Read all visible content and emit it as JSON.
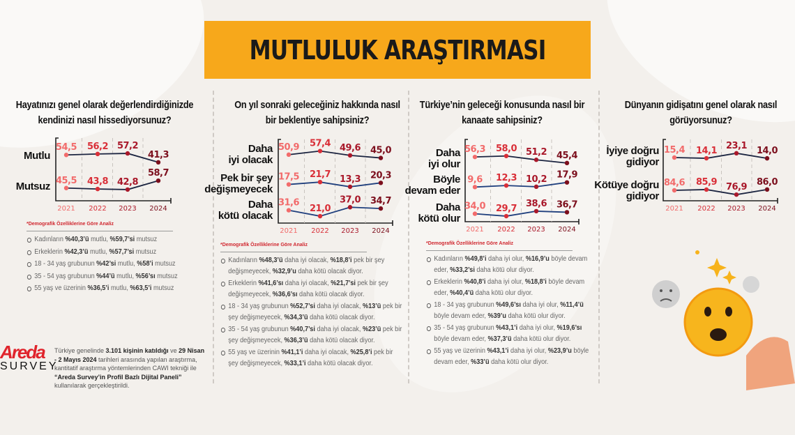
{
  "title": "MUTLULUK ARAŞTIRMASI",
  "colors": {
    "title_bg": "#f7a81b",
    "y2021": "#f26b6b",
    "y2022": "#d92f38",
    "y2023": "#a9182a",
    "y2024": "#7c0f1d",
    "line_dark": "#1b2440",
    "line_blue": "#1f3f7d"
  },
  "demographic_heading": "*Demografik Özelliklerine Göre Analiz",
  "chart_data": [
    {
      "type": "line",
      "title": "Hayatınızı genel olarak değerlendirdiğinizde kendinizi nasıl hissediyorsunuz?",
      "categories": [
        "2021",
        "2022",
        "2023",
        "2024"
      ],
      "series": [
        {
          "name": "Mutlu",
          "values": [
            54.5,
            56.2,
            57.2,
            41.3
          ]
        },
        {
          "name": "Mutsuz",
          "values": [
            45.5,
            43.8,
            42.8,
            58.7
          ]
        }
      ]
    },
    {
      "type": "line",
      "title": "On yıl sonraki geleceğiniz hakkında nasıl bir beklentiye sahipsiniz?",
      "categories": [
        "2021",
        "2022",
        "2023",
        "2024"
      ],
      "series": [
        {
          "name": "Daha iyi olacak",
          "values": [
            50.9,
            57.4,
            49.6,
            45.0
          ]
        },
        {
          "name": "Pek bir şey değişmeyecek",
          "values": [
            17.5,
            21.7,
            13.3,
            20.3
          ]
        },
        {
          "name": "Daha kötü olacak",
          "values": [
            31.6,
            21.0,
            37.0,
            34.7
          ]
        }
      ]
    },
    {
      "type": "line",
      "title": "Türkiye’nin geleceği konusunda nasıl bir kanaate sahipsiniz?",
      "categories": [
        "2021",
        "2022",
        "2023",
        "2024"
      ],
      "series": [
        {
          "name": "Daha iyi olur",
          "values": [
            56.3,
            58.0,
            51.2,
            45.4
          ]
        },
        {
          "name": "Böyle devam eder",
          "values": [
            9.6,
            12.3,
            10.2,
            17.9
          ]
        },
        {
          "name": "Daha kötü olur",
          "values": [
            34.0,
            29.7,
            38.6,
            36.7
          ]
        }
      ]
    },
    {
      "type": "line",
      "title": "Dünyanın gidişatını genel olarak nasıl görüyorsunuz?",
      "categories": [
        "2021",
        "2022",
        "2023",
        "2024"
      ],
      "series": [
        {
          "name": "İyiye doğru gidiyor",
          "values": [
            15.4,
            14.1,
            23.1,
            14.0
          ]
        },
        {
          "name": "Kötüye doğru gidiyor",
          "values": [
            84.6,
            85.9,
            76.9,
            86.0
          ]
        }
      ]
    }
  ],
  "demographics": [
    [
      [
        [
          "Kadınların ",
          0
        ],
        [
          "%40,3’ü",
          1
        ],
        [
          " mutlu, ",
          0
        ],
        [
          "%59,7’si",
          1
        ],
        [
          " mutsuz",
          0
        ]
      ],
      [
        [
          "Erkeklerin ",
          0
        ],
        [
          "%42,3’ü",
          1
        ],
        [
          " mutlu, ",
          0
        ],
        [
          "%57,7’si",
          1
        ],
        [
          " mutsuz",
          0
        ]
      ],
      [
        [
          "18 - 34 yaş grubunun ",
          0
        ],
        [
          "%42’si",
          1
        ],
        [
          " mutlu, ",
          0
        ],
        [
          "%58’i",
          1
        ],
        [
          " mutsuz",
          0
        ]
      ],
      [
        [
          "35 - 54 yaş grubunun ",
          0
        ],
        [
          "%44’ü",
          1
        ],
        [
          " mutlu, ",
          0
        ],
        [
          "%56’sı",
          1
        ],
        [
          " mutsuz",
          0
        ]
      ],
      [
        [
          "55 yaş ve üzerinin ",
          0
        ],
        [
          "%36,5’i",
          1
        ],
        [
          " mutlu, ",
          0
        ],
        [
          "%63,5’i",
          1
        ],
        [
          " mutsuz",
          0
        ]
      ]
    ],
    [
      [
        [
          "Kadınların ",
          0
        ],
        [
          "%48,3’ü",
          1
        ],
        [
          " daha iyi olacak, ",
          0
        ],
        [
          "%18,8’i",
          1
        ],
        [
          " pek bir şey değişmeyecek, ",
          0
        ],
        [
          "%32,9’u",
          1
        ],
        [
          " daha kötü olacak diyor.",
          0
        ]
      ],
      [
        [
          "Erkeklerin ",
          0
        ],
        [
          "%41,6’sı",
          1
        ],
        [
          " daha iyi olacak, ",
          0
        ],
        [
          "%21,7’si",
          1
        ],
        [
          " pek bir şey değişmeyecek, ",
          0
        ],
        [
          "%36,6’sı",
          1
        ],
        [
          "  daha kötü olacak diyor.",
          0
        ]
      ],
      [
        [
          "18 - 34 yaş grubunun ",
          0
        ],
        [
          "%52,7’si",
          1
        ],
        [
          " daha iyi olacak, ",
          0
        ],
        [
          "%13’ü",
          1
        ],
        [
          " pek bir şey değişmeyecek, ",
          0
        ],
        [
          "%34,3’ü",
          1
        ],
        [
          " daha kötü olacak diyor.",
          0
        ]
      ],
      [
        [
          "35 - 54 yaş grubunun ",
          0
        ],
        [
          "%40,7’si",
          1
        ],
        [
          " daha iyi olacak, ",
          0
        ],
        [
          "%23’ü",
          1
        ],
        [
          " pek bir şey değişmeyecek, ",
          0
        ],
        [
          "%36,3’ü",
          1
        ],
        [
          " daha kötü olacak diyor.",
          0
        ]
      ],
      [
        [
          "55 yaş ve üzerinin  ",
          0
        ],
        [
          "%41,1’i",
          1
        ],
        [
          " daha iyi olacak, ",
          0
        ],
        [
          "%25,8’i",
          1
        ],
        [
          " pek bir şey değişmeyecek, ",
          0
        ],
        [
          "%33,1’i",
          1
        ],
        [
          " daha kötü olacak diyor.",
          0
        ]
      ]
    ],
    [
      [
        [
          "Kadınların ",
          0
        ],
        [
          "%49,8’i",
          1
        ],
        [
          " daha iyi olur, ",
          0
        ],
        [
          "%16,9’u",
          1
        ],
        [
          " böyle devam eder, ",
          0
        ],
        [
          "%33,2’si",
          1
        ],
        [
          "  daha kötü olur diyor.",
          0
        ]
      ],
      [
        [
          "Erkeklerin ",
          0
        ],
        [
          "%40,8’i",
          1
        ],
        [
          " daha iyi olur, ",
          0
        ],
        [
          "%18,8’i",
          1
        ],
        [
          " böyle devam eder, ",
          0
        ],
        [
          "%40,4’ü",
          1
        ],
        [
          " daha kötü olur diyor.",
          0
        ]
      ],
      [
        [
          "18 - 34 yaş grubunun ",
          0
        ],
        [
          "%49,6’sı",
          1
        ],
        [
          " daha iyi olur, ",
          0
        ],
        [
          "%11,4’ü",
          1
        ],
        [
          " böyle devam eder, ",
          0
        ],
        [
          "%39’u",
          1
        ],
        [
          " daha kötü olur diyor.",
          0
        ]
      ],
      [
        [
          "35 - 54 yaş grubunun ",
          0
        ],
        [
          "%43,1’i",
          1
        ],
        [
          " daha iyi olur, ",
          0
        ],
        [
          "%19,6’sı",
          1
        ],
        [
          " böyle devam eder, ",
          0
        ],
        [
          "%37,3’ü",
          1
        ],
        [
          " daha kötü olur diyor.",
          0
        ]
      ],
      [
        [
          "55 yaş ve üzerinin  ",
          0
        ],
        [
          "%43,1’i",
          1
        ],
        [
          " daha iyi olur, ",
          0
        ],
        [
          "%23,9’u",
          1
        ],
        [
          " böyle devam eder, ",
          0
        ],
        [
          "%33’ü",
          1
        ],
        [
          " daha  kötü olur diyor.",
          0
        ]
      ]
    ]
  ],
  "logo": {
    "brand": "Areda",
    "sub": "SURVEY"
  },
  "footnote": [
    [
      "Türkiye genelinde ",
      0
    ],
    [
      "3.101 kişinin katıldığı",
      1
    ],
    [
      " ve ",
      0
    ],
    [
      "29 Nisan - 2 Mayıs 2024",
      1
    ],
    [
      " tarihleri arasında yapılan araştırma, kantitatif araştırma yöntemlerinden CAWI tekniği ile ",
      0
    ],
    [
      "“Areda Survey’in Profil Bazlı Dijital Paneli”",
      1
    ],
    [
      " kullanılarak gerçekleştirildi.",
      0
    ]
  ]
}
